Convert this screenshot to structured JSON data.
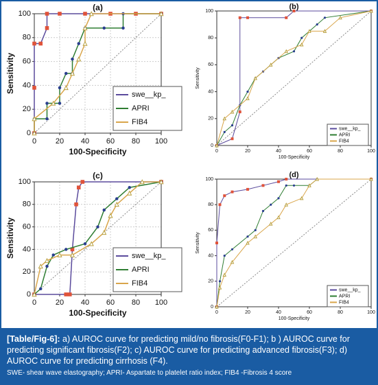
{
  "chart_data": [
    {
      "type": "line",
      "title": "(a)",
      "xlabel": "100-Specificity",
      "ylabel": "Sensitivity",
      "xlim": [
        0,
        100
      ],
      "ylim": [
        0,
        100
      ],
      "xticks": [
        0,
        20,
        40,
        60,
        80,
        100
      ],
      "yticks": [
        0,
        20,
        40,
        60,
        80,
        100
      ],
      "grid": true,
      "legend": "lower right",
      "series": [
        {
          "name": "swe__kp_",
          "color": "#5a4a9c",
          "marker": "square",
          "marker_color": "#e0533a",
          "x": [
            0,
            0,
            0,
            5,
            10,
            10,
            20,
            40,
            60,
            80,
            100
          ],
          "values": [
            0,
            38,
            75,
            75,
            88,
            100,
            100,
            100,
            100,
            100,
            100
          ]
        },
        {
          "name": "APRI",
          "color": "#2e7d32",
          "marker": "dot",
          "marker_color": "#2b3f8f",
          "x": [
            0,
            0,
            10,
            10,
            20,
            20,
            25,
            30,
            30,
            35,
            40,
            55,
            70,
            70,
            100
          ],
          "values": [
            0,
            12,
            12,
            25,
            25,
            38,
            50,
            50,
            62,
            75,
            88,
            88,
            88,
            100,
            100
          ]
        },
        {
          "name": "FIB4",
          "color": "#d9a54a",
          "marker": "triangle",
          "marker_color": "#b8a040",
          "x": [
            0,
            0,
            15,
            25,
            30,
            35,
            40,
            40,
            45,
            100
          ],
          "values": [
            0,
            12,
            25,
            38,
            50,
            62,
            75,
            88,
            100,
            100
          ]
        }
      ]
    },
    {
      "type": "line",
      "title": "(b)",
      "xlabel": "100-Specificity",
      "ylabel": "Sensitivity",
      "xlim": [
        0,
        100
      ],
      "ylim": [
        0,
        100
      ],
      "xticks": [
        0,
        20,
        40,
        60,
        80,
        100
      ],
      "yticks": [
        0,
        20,
        40,
        60,
        80,
        100
      ],
      "grid": false,
      "legend": "lower right",
      "series": [
        {
          "name": "swe__kp_",
          "color": "#5a4a9c",
          "marker": "square",
          "marker_color": "#e0533a",
          "x": [
            0,
            10,
            15,
            15,
            20,
            45,
            50,
            100
          ],
          "values": [
            0,
            5,
            25,
            95,
            95,
            95,
            100,
            100
          ]
        },
        {
          "name": "APRI",
          "color": "#2e7d32",
          "marker": "dot",
          "marker_color": "#2b3f8f",
          "x": [
            0,
            5,
            10,
            15,
            20,
            25,
            30,
            40,
            50,
            55,
            65,
            70,
            100
          ],
          "values": [
            0,
            10,
            15,
            30,
            40,
            50,
            55,
            65,
            70,
            80,
            90,
            95,
            100
          ]
        },
        {
          "name": "FIB4",
          "color": "#d9a54a",
          "marker": "triangle",
          "marker_color": "#b8a040",
          "x": [
            0,
            5,
            10,
            20,
            25,
            35,
            45,
            55,
            60,
            70,
            80,
            100
          ],
          "values": [
            0,
            20,
            25,
            35,
            50,
            60,
            70,
            75,
            85,
            85,
            95,
            100
          ]
        }
      ]
    },
    {
      "type": "line",
      "title": "(c)",
      "xlabel": "100-Specificity",
      "ylabel": "Sensitivity",
      "xlim": [
        0,
        100
      ],
      "ylim": [
        0,
        100
      ],
      "xticks": [
        0,
        20,
        40,
        60,
        80,
        100
      ],
      "yticks": [
        0,
        20,
        40,
        60,
        80,
        100
      ],
      "grid": true,
      "legend": "lower right",
      "series": [
        {
          "name": "swe__kp_",
          "color": "#5a4a9c",
          "marker": "square",
          "marker_color": "#e0533a",
          "x": [
            0,
            25,
            28,
            30,
            33,
            35,
            38,
            100
          ],
          "values": [
            0,
            0,
            0,
            40,
            80,
            95,
            100,
            100
          ]
        },
        {
          "name": "APRI",
          "color": "#2e7d32",
          "marker": "dot",
          "marker_color": "#2b3f8f",
          "x": [
            0,
            5,
            10,
            15,
            25,
            40,
            50,
            55,
            65,
            75,
            100
          ],
          "values": [
            0,
            5,
            25,
            35,
            40,
            45,
            60,
            75,
            85,
            95,
            100
          ]
        },
        {
          "name": "FIB4",
          "color": "#d9a54a",
          "marker": "triangle",
          "marker_color": "#b8a040",
          "x": [
            0,
            5,
            10,
            20,
            30,
            45,
            55,
            60,
            65,
            75,
            85,
            100
          ],
          "values": [
            0,
            25,
            30,
            35,
            35,
            45,
            55,
            70,
            80,
            90,
            100,
            100
          ]
        }
      ]
    },
    {
      "type": "line",
      "title": "(d)",
      "xlabel": "100-Specificity",
      "ylabel": "Sensitivity",
      "xlim": [
        0,
        100
      ],
      "ylim": [
        0,
        100
      ],
      "xticks": [
        0,
        20,
        40,
        60,
        80,
        100
      ],
      "yticks": [
        0,
        20,
        40,
        60,
        80,
        100
      ],
      "grid": false,
      "legend": "lower right",
      "series": [
        {
          "name": "swe__kp_",
          "color": "#5a4a9c",
          "marker": "square",
          "marker_color": "#e0533a",
          "x": [
            0,
            0,
            2,
            5,
            10,
            20,
            30,
            40,
            45,
            100
          ],
          "values": [
            0,
            50,
            80,
            87,
            90,
            92,
            95,
            98,
            100,
            100
          ]
        },
        {
          "name": "APRI",
          "color": "#2e7d32",
          "marker": "dot",
          "marker_color": "#2b3f8f",
          "x": [
            0,
            2,
            5,
            10,
            20,
            25,
            30,
            35,
            40,
            45,
            50,
            60,
            65,
            100
          ],
          "values": [
            0,
            20,
            40,
            45,
            55,
            60,
            75,
            80,
            85,
            95,
            95,
            95,
            100,
            100
          ]
        },
        {
          "name": "FIB4",
          "color": "#d9a54a",
          "marker": "triangle",
          "marker_color": "#b8a040",
          "x": [
            0,
            2,
            5,
            10,
            20,
            25,
            35,
            40,
            45,
            55,
            60,
            65,
            100
          ],
          "values": [
            0,
            15,
            25,
            35,
            50,
            55,
            65,
            70,
            80,
            85,
            95,
            100,
            100
          ]
        }
      ]
    }
  ],
  "caption": {
    "label": "[Table/Fig-6]:",
    "text": "a) AUROC curve for predicting mild/no fibrosis(F0-F1); b ) AUROC curve for predicting significant fibrosis(F2); c) AUROC curve for predicting advanced fibrosis(F3); d) AUROC curve for predicting cirrhosis (F4).",
    "note": "SWE- shear wave elastography; APRI- Aspartate to platelet ratio index; FIB4 -Fibrosis 4 score"
  }
}
